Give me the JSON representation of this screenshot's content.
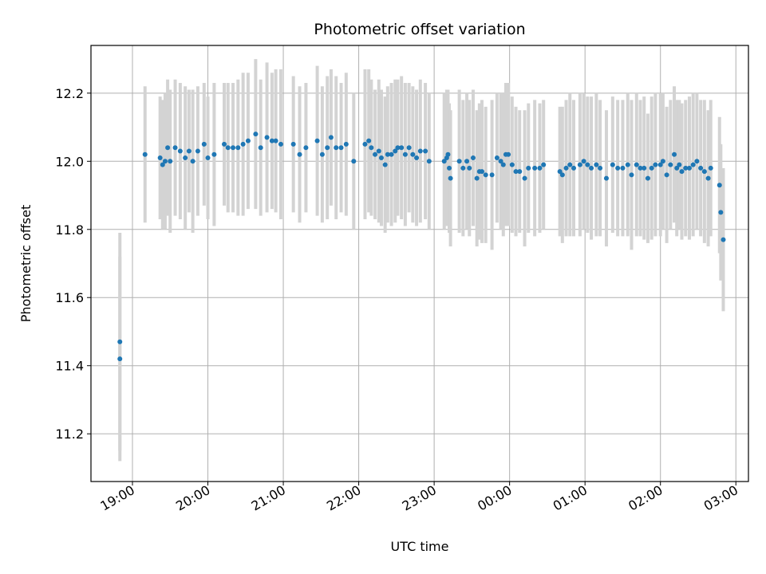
{
  "chart_data": {
    "type": "scatter",
    "title": "Photometric offset variation",
    "xlabel": "UTC time",
    "ylabel": "Photometric offset",
    "x_unit": "UTC hours",
    "xlim": [
      "18:27",
      "03:10"
    ],
    "ylim": [
      11.06,
      12.34
    ],
    "grid": true,
    "legend": "none",
    "x_ticks": [
      "19:00",
      "20:00",
      "21:00",
      "22:00",
      "23:00",
      "00:00",
      "01:00",
      "02:00",
      "03:00"
    ],
    "y_ticks": [
      "11.2",
      "11.4",
      "11.6",
      "11.8",
      "12.0",
      "12.2"
    ],
    "colors": {
      "point": "#1f77b4",
      "errorbar": "#d3d3d3",
      "grid": "#b0b0b0"
    },
    "series": [
      {
        "columns": [
          "time",
          "offset",
          "error"
        ],
        "points": [
          [
            "18:50",
            11.42,
            0.3
          ],
          [
            "18:50",
            11.47,
            0.32
          ],
          [
            "19:10",
            12.02,
            0.2
          ],
          [
            "19:22",
            12.01,
            0.18
          ],
          [
            "19:24",
            11.99,
            0.19
          ],
          [
            "19:26",
            12.0,
            0.2
          ],
          [
            "19:28",
            12.04,
            0.2
          ],
          [
            "19:30",
            12.0,
            0.21
          ],
          [
            "19:34",
            12.04,
            0.2
          ],
          [
            "19:38",
            12.03,
            0.2
          ],
          [
            "19:42",
            12.01,
            0.21
          ],
          [
            "19:45",
            12.03,
            0.18
          ],
          [
            "19:48",
            12.0,
            0.21
          ],
          [
            "19:52",
            12.03,
            0.19
          ],
          [
            "19:57",
            12.05,
            0.18
          ],
          [
            "20:00",
            12.01,
            0.18
          ],
          [
            "20:05",
            12.02,
            0.21
          ],
          [
            "20:13",
            12.05,
            0.18
          ],
          [
            "20:16",
            12.04,
            0.19
          ],
          [
            "20:20",
            12.04,
            0.19
          ],
          [
            "20:24",
            12.04,
            0.2
          ],
          [
            "20:28",
            12.05,
            0.21
          ],
          [
            "20:32",
            12.06,
            0.2
          ],
          [
            "20:38",
            12.08,
            0.22
          ],
          [
            "20:42",
            12.04,
            0.2
          ],
          [
            "20:47",
            12.07,
            0.22
          ],
          [
            "20:51",
            12.06,
            0.2
          ],
          [
            "20:54",
            12.06,
            0.21
          ],
          [
            "20:58",
            12.05,
            0.22
          ],
          [
            "21:08",
            12.05,
            0.2
          ],
          [
            "21:13",
            12.02,
            0.2
          ],
          [
            "21:18",
            12.04,
            0.19
          ],
          [
            "21:27",
            12.06,
            0.22
          ],
          [
            "21:31",
            12.02,
            0.2
          ],
          [
            "21:35",
            12.04,
            0.21
          ],
          [
            "21:38",
            12.07,
            0.2
          ],
          [
            "21:42",
            12.04,
            0.21
          ],
          [
            "21:46",
            12.04,
            0.19
          ],
          [
            "21:50",
            12.05,
            0.21
          ],
          [
            "21:56",
            12.0,
            0.2
          ],
          [
            "22:05",
            12.05,
            0.22
          ],
          [
            "22:08",
            12.06,
            0.21
          ],
          [
            "22:10",
            12.04,
            0.2
          ],
          [
            "22:13",
            12.02,
            0.19
          ],
          [
            "22:16",
            12.03,
            0.21
          ],
          [
            "22:18",
            12.01,
            0.2
          ],
          [
            "22:21",
            11.99,
            0.2
          ],
          [
            "22:23",
            12.02,
            0.2
          ],
          [
            "22:26",
            12.02,
            0.21
          ],
          [
            "22:29",
            12.03,
            0.21
          ],
          [
            "22:31",
            12.04,
            0.2
          ],
          [
            "22:34",
            12.04,
            0.21
          ],
          [
            "22:37",
            12.02,
            0.21
          ],
          [
            "22:40",
            12.04,
            0.19
          ],
          [
            "22:43",
            12.02,
            0.2
          ],
          [
            "22:46",
            12.01,
            0.2
          ],
          [
            "22:49",
            12.03,
            0.21
          ],
          [
            "22:53",
            12.03,
            0.2
          ],
          [
            "22:56",
            12.0,
            0.2
          ],
          [
            "23:08",
            12.0,
            0.2
          ],
          [
            "23:10",
            12.01,
            0.2
          ],
          [
            "23:11",
            12.02,
            0.19
          ],
          [
            "23:12",
            11.98,
            0.19
          ],
          [
            "23:13",
            11.95,
            0.2
          ],
          [
            "23:20",
            12.0,
            0.21
          ],
          [
            "23:23",
            11.98,
            0.2
          ],
          [
            "23:26",
            12.0,
            0.2
          ],
          [
            "23:28",
            11.98,
            0.2
          ],
          [
            "23:31",
            12.01,
            0.2
          ],
          [
            "23:34",
            11.95,
            0.2
          ],
          [
            "23:36",
            11.97,
            0.2
          ],
          [
            "23:38",
            11.97,
            0.21
          ],
          [
            "23:41",
            11.96,
            0.2
          ],
          [
            "23:46",
            11.96,
            0.22
          ],
          [
            "23:50",
            12.01,
            0.19
          ],
          [
            "23:53",
            12.0,
            0.2
          ],
          [
            "23:55",
            11.99,
            0.21
          ],
          [
            "23:57",
            12.02,
            0.21
          ],
          [
            "23:59",
            12.02,
            0.21
          ],
          [
            "00:02",
            11.99,
            0.2
          ],
          [
            "00:05",
            11.97,
            0.19
          ],
          [
            "00:08",
            11.97,
            0.18
          ],
          [
            "00:12",
            11.95,
            0.2
          ],
          [
            "00:15",
            11.98,
            0.19
          ],
          [
            "00:20",
            11.98,
            0.2
          ],
          [
            "00:24",
            11.98,
            0.19
          ],
          [
            "00:27",
            11.99,
            0.19
          ],
          [
            "00:40",
            11.97,
            0.19
          ],
          [
            "00:42",
            11.96,
            0.2
          ],
          [
            "00:45",
            11.98,
            0.2
          ],
          [
            "00:48",
            11.99,
            0.21
          ],
          [
            "00:51",
            11.98,
            0.2
          ],
          [
            "00:56",
            11.99,
            0.21
          ],
          [
            "00:59",
            12.0,
            0.2
          ],
          [
            "01:02",
            11.99,
            0.2
          ],
          [
            "01:05",
            11.98,
            0.21
          ],
          [
            "01:09",
            11.99,
            0.21
          ],
          [
            "01:12",
            11.98,
            0.2
          ],
          [
            "01:17",
            11.95,
            0.2
          ],
          [
            "01:22",
            11.99,
            0.2
          ],
          [
            "01:26",
            11.98,
            0.2
          ],
          [
            "01:30",
            11.98,
            0.2
          ],
          [
            "01:34",
            11.99,
            0.21
          ],
          [
            "01:37",
            11.96,
            0.22
          ],
          [
            "01:41",
            11.99,
            0.21
          ],
          [
            "01:44",
            11.98,
            0.2
          ],
          [
            "01:47",
            11.98,
            0.21
          ],
          [
            "01:50",
            11.95,
            0.19
          ],
          [
            "01:53",
            11.98,
            0.21
          ],
          [
            "01:56",
            11.99,
            0.21
          ],
          [
            "02:00",
            11.99,
            0.21
          ],
          [
            "02:02",
            12.0,
            0.2
          ],
          [
            "02:05",
            11.96,
            0.2
          ],
          [
            "02:08",
            11.99,
            0.19
          ],
          [
            "02:11",
            12.02,
            0.2
          ],
          [
            "02:13",
            11.98,
            0.2
          ],
          [
            "02:15",
            11.99,
            0.19
          ],
          [
            "02:17",
            11.97,
            0.2
          ],
          [
            "02:20",
            11.98,
            0.2
          ],
          [
            "02:23",
            11.98,
            0.21
          ],
          [
            "02:26",
            11.99,
            0.21
          ],
          [
            "02:29",
            12.0,
            0.2
          ],
          [
            "02:32",
            11.98,
            0.2
          ],
          [
            "02:35",
            11.97,
            0.21
          ],
          [
            "02:38",
            11.95,
            0.2
          ],
          [
            "02:40",
            11.98,
            0.2
          ],
          [
            "02:47",
            11.93,
            0.2
          ],
          [
            "02:48",
            11.85,
            0.2
          ],
          [
            "02:50",
            11.77,
            0.21
          ]
        ]
      }
    ]
  }
}
